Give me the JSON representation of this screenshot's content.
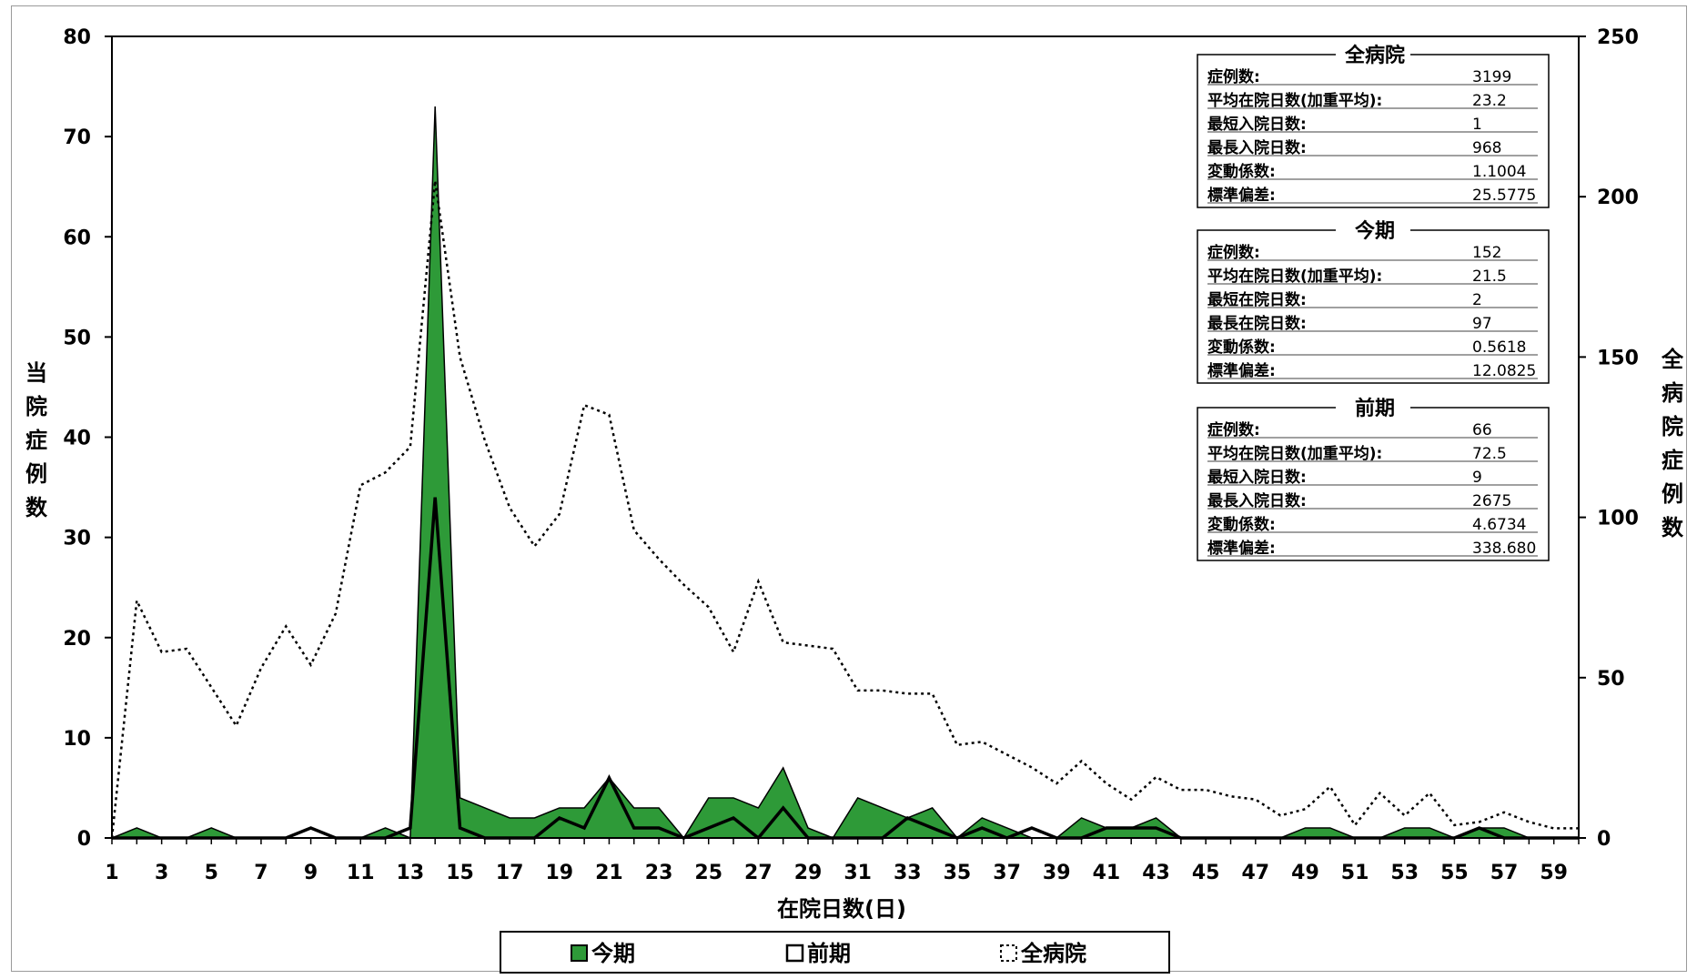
{
  "chart_data": {
    "type": "area",
    "xlabel": "在院日数(日)",
    "ylabel_left": "当院症例数",
    "ylabel_right": "全病院症例数",
    "ylim_left": [
      0,
      80
    ],
    "ylim_right": [
      0,
      250
    ],
    "yticks_left": [
      0,
      10,
      20,
      30,
      40,
      50,
      60,
      70,
      80
    ],
    "yticks_right": [
      0,
      50,
      100,
      150,
      200,
      250
    ],
    "x": [
      1,
      2,
      3,
      4,
      5,
      6,
      7,
      8,
      9,
      10,
      11,
      12,
      13,
      14,
      15,
      16,
      17,
      18,
      19,
      20,
      21,
      22,
      23,
      24,
      25,
      26,
      27,
      28,
      29,
      30,
      31,
      32,
      33,
      34,
      35,
      36,
      37,
      38,
      39,
      40,
      41,
      42,
      43,
      44,
      45,
      46,
      47,
      48,
      49,
      50,
      51,
      52,
      53,
      54,
      55,
      56,
      57,
      58,
      59,
      60
    ],
    "xticks": [
      1,
      3,
      5,
      7,
      9,
      11,
      13,
      15,
      17,
      19,
      21,
      23,
      25,
      27,
      29,
      31,
      33,
      35,
      37,
      39,
      41,
      43,
      45,
      47,
      49,
      51,
      53,
      55,
      57,
      59
    ],
    "grid": false,
    "legend_position": "bottom",
    "series": [
      {
        "name": "今期",
        "axis": "left",
        "style": "area",
        "color": "#2e9a38",
        "values": [
          0,
          1,
          0,
          0,
          1,
          0,
          0,
          0,
          0,
          0,
          0,
          1,
          0,
          73,
          4,
          3,
          2,
          2,
          3,
          3,
          6,
          3,
          3,
          0,
          4,
          4,
          3,
          7,
          1,
          0,
          4,
          3,
          2,
          3,
          0,
          2,
          1,
          0,
          0,
          2,
          1,
          1,
          2,
          0,
          0,
          0,
          0,
          0,
          1,
          1,
          0,
          0,
          1,
          1,
          0,
          1,
          1,
          0,
          0,
          0
        ]
      },
      {
        "name": "前期",
        "axis": "left",
        "style": "line",
        "color": "#000000",
        "values": [
          0,
          0,
          0,
          0,
          0,
          0,
          0,
          0,
          1,
          0,
          0,
          0,
          1,
          34,
          1,
          0,
          0,
          0,
          2,
          1,
          6,
          1,
          1,
          0,
          1,
          2,
          0,
          3,
          0,
          0,
          0,
          0,
          2,
          1,
          0,
          1,
          0,
          1,
          0,
          0,
          1,
          1,
          1,
          0,
          0,
          0,
          0,
          0,
          0,
          0,
          0,
          0,
          0,
          0,
          0,
          1,
          0,
          0,
          0,
          0
        ]
      },
      {
        "name": "全病院",
        "axis": "right",
        "style": "dotted",
        "color": "#000000",
        "values": [
          0,
          74,
          58,
          59,
          47,
          35,
          53,
          66,
          54,
          70,
          110,
          114,
          122,
          205,
          150,
          124,
          103,
          91,
          101,
          135,
          132,
          96,
          87,
          79,
          72,
          58,
          80,
          61,
          60,
          59,
          46,
          46,
          45,
          45,
          29,
          30,
          26,
          22,
          17,
          24,
          17,
          12,
          19,
          15,
          15,
          13,
          12,
          7,
          9,
          16,
          4,
          14,
          7,
          14,
          4,
          5,
          8,
          5,
          3,
          3
        ]
      }
    ],
    "stat_boxes": [
      {
        "title": "全病院",
        "rows": [
          {
            "label": "症例数:",
            "value": "3199"
          },
          {
            "label": "平均在院日数(加重平均):",
            "value": "23.2"
          },
          {
            "label": "最短入院日数:",
            "value": "1"
          },
          {
            "label": "最長入院日数:",
            "value": "968"
          },
          {
            "label": "変動係数:",
            "value": "1.1004"
          },
          {
            "label": "標準偏差:",
            "value": "25.5775"
          }
        ]
      },
      {
        "title": "今期",
        "rows": [
          {
            "label": "症例数:",
            "value": "152"
          },
          {
            "label": "平均在院日数(加重平均):",
            "value": "21.5"
          },
          {
            "label": "最短在院日数:",
            "value": "2"
          },
          {
            "label": "最長在院日数:",
            "value": "97"
          },
          {
            "label": "変動係数:",
            "value": "0.5618"
          },
          {
            "label": "標準偏差:",
            "value": "12.0825"
          }
        ]
      },
      {
        "title": "前期",
        "rows": [
          {
            "label": "症例数:",
            "value": "66"
          },
          {
            "label": "平均在院日数(加重平均):",
            "value": "72.5"
          },
          {
            "label": "最短入院日数:",
            "value": "9"
          },
          {
            "label": "最長入院日数:",
            "value": "2675"
          },
          {
            "label": "変動係数:",
            "value": "4.6734"
          },
          {
            "label": "標準偏差:",
            "value": "338.680"
          }
        ]
      }
    ]
  }
}
